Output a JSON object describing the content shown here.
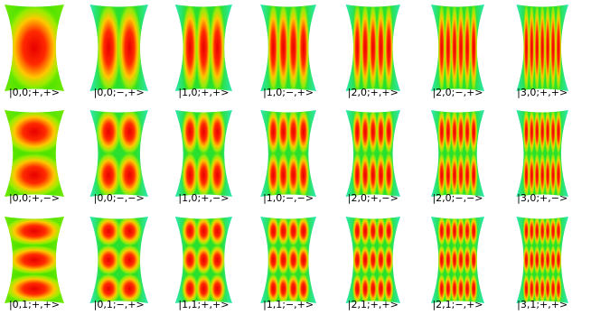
{
  "panels": {
    "rows": [
      [
        "|0,0;+,+>",
        "|0,0;−,+>",
        "|1,0;+,+>",
        "|1,0;−,+>",
        "|2,0;+,+>",
        "|2,0;−,+>",
        "|3,0;+,+>"
      ],
      [
        "|0,0;+,−>",
        "|0,0;−,−>",
        "|1,0;+,−>",
        "|1,0;−,−>",
        "|2,0;+,−>",
        "|2,0;−,−>",
        "|3,0;+,−>"
      ],
      [
        "|0,1;+,+>",
        "|0,1;−,+>",
        "|1,1;+,+>",
        "|1,1;−,+>",
        "|2,1;+,+>",
        "|2,1;−,+>",
        "|3,1;+,+>"
      ]
    ]
  }
}
